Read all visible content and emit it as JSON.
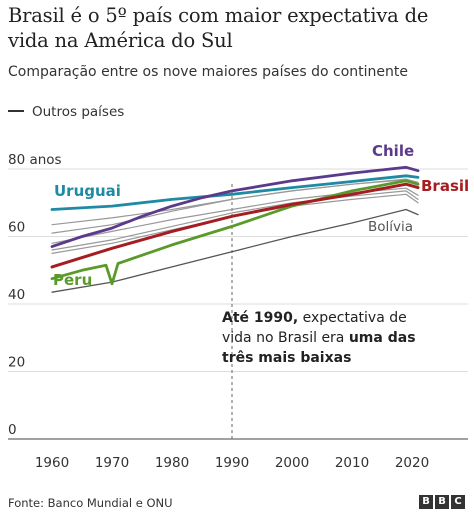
{
  "header": {
    "title": "Brasil é o 5º país com maior expectativa de vida na América do Sul",
    "subtitle": "Comparação entre os nove maiores países do continente"
  },
  "legend": {
    "others_label": "Outros países"
  },
  "annotation": {
    "part1": "Até 1990,",
    "part2": " expectativa de vida no Brasil era ",
    "part3": "uma das três mais baixas"
  },
  "footer": {
    "source": "Fonte: Banco Mundial e ONU",
    "logo": [
      "B",
      "B",
      "C"
    ]
  },
  "colors": {
    "chile": "#5b3a8c",
    "uruguai": "#1f8aa3",
    "brasil": "#a51d21",
    "peru": "#5a9a2a",
    "outros": "#999999",
    "bolivia": "#555555"
  },
  "chart_data": {
    "type": "line",
    "x_ticks": [
      1960,
      1970,
      1980,
      1990,
      2000,
      2010,
      2020
    ],
    "y_ticks": [
      0,
      20,
      40,
      60,
      80
    ],
    "y_tick_labels": [
      "0",
      "20",
      "40",
      "60",
      "80 anos"
    ],
    "xlim": [
      1958,
      2022
    ],
    "ylim": [
      0,
      82
    ],
    "highlight_year": 1990,
    "series": [
      {
        "name": "",
        "kind": "other",
        "points": [
          [
            1960,
            63.5
          ],
          [
            1970,
            65.5
          ],
          [
            1980,
            68
          ],
          [
            1990,
            71
          ],
          [
            2000,
            73.5
          ],
          [
            2010,
            75.5
          ],
          [
            2015,
            76.2
          ],
          [
            2019,
            76.8
          ],
          [
            2021,
            76
          ]
        ]
      },
      {
        "name": "",
        "kind": "other",
        "points": [
          [
            1960,
            61
          ],
          [
            1970,
            63.5
          ],
          [
            1980,
            67.5
          ],
          [
            1990,
            71
          ],
          [
            2000,
            73.5
          ],
          [
            2010,
            75.5
          ],
          [
            2019,
            77
          ],
          [
            2021,
            76
          ]
        ]
      },
      {
        "name": "",
        "kind": "other",
        "points": [
          [
            1960,
            58
          ],
          [
            1970,
            61.5
          ],
          [
            1980,
            65
          ],
          [
            1990,
            68
          ],
          [
            2000,
            71
          ],
          [
            2010,
            73
          ],
          [
            2019,
            74.3
          ],
          [
            2021,
            72.2
          ]
        ]
      },
      {
        "name": "",
        "kind": "other",
        "points": [
          [
            1960,
            56
          ],
          [
            1970,
            59
          ],
          [
            1980,
            63
          ],
          [
            1990,
            67
          ],
          [
            2000,
            70
          ],
          [
            2010,
            72
          ],
          [
            2019,
            73.5
          ],
          [
            2021,
            71
          ]
        ]
      },
      {
        "name": "",
        "kind": "other",
        "points": [
          [
            1960,
            55
          ],
          [
            1970,
            58
          ],
          [
            1980,
            62
          ],
          [
            1990,
            66
          ],
          [
            2000,
            69
          ],
          [
            2010,
            71
          ],
          [
            2019,
            72.5
          ],
          [
            2021,
            70
          ]
        ]
      },
      {
        "name": "Bolívia",
        "kind": "bolivia",
        "points": [
          [
            1960,
            43.5
          ],
          [
            1970,
            46.5
          ],
          [
            1980,
            51
          ],
          [
            1990,
            55.5
          ],
          [
            2000,
            60
          ],
          [
            2010,
            64
          ],
          [
            2019,
            68
          ],
          [
            2021,
            66.5
          ]
        ]
      },
      {
        "name": "Peru",
        "kind": "peru",
        "points": [
          [
            1960,
            47.5
          ],
          [
            1965,
            50
          ],
          [
            1969,
            51.5
          ],
          [
            1970,
            46
          ],
          [
            1971,
            52
          ],
          [
            1980,
            57.5
          ],
          [
            1990,
            63
          ],
          [
            2000,
            69
          ],
          [
            2010,
            73.5
          ],
          [
            2019,
            76.5
          ],
          [
            2021,
            75.5
          ]
        ]
      },
      {
        "name": "Brasil",
        "kind": "brasil",
        "points": [
          [
            1960,
            51
          ],
          [
            1970,
            56.5
          ],
          [
            1980,
            61.5
          ],
          [
            1990,
            66
          ],
          [
            2000,
            69.5
          ],
          [
            2010,
            72.5
          ],
          [
            2019,
            75.5
          ],
          [
            2021,
            74.5
          ]
        ]
      },
      {
        "name": "Uruguai",
        "kind": "uruguai",
        "points": [
          [
            1960,
            68
          ],
          [
            1970,
            69
          ],
          [
            1980,
            71
          ],
          [
            1990,
            72.5
          ],
          [
            2000,
            74.5
          ],
          [
            2010,
            76.3
          ],
          [
            2019,
            78
          ],
          [
            2021,
            77.5
          ]
        ]
      },
      {
        "name": "Chile",
        "kind": "chile",
        "points": [
          [
            1960,
            57
          ],
          [
            1965,
            60
          ],
          [
            1970,
            62.5
          ],
          [
            1975,
            66
          ],
          [
            1980,
            69
          ],
          [
            1985,
            71.5
          ],
          [
            1990,
            73.5
          ],
          [
            2000,
            76.5
          ],
          [
            2010,
            78.8
          ],
          [
            2019,
            80.5
          ],
          [
            2021,
            79.5
          ]
        ]
      }
    ]
  }
}
